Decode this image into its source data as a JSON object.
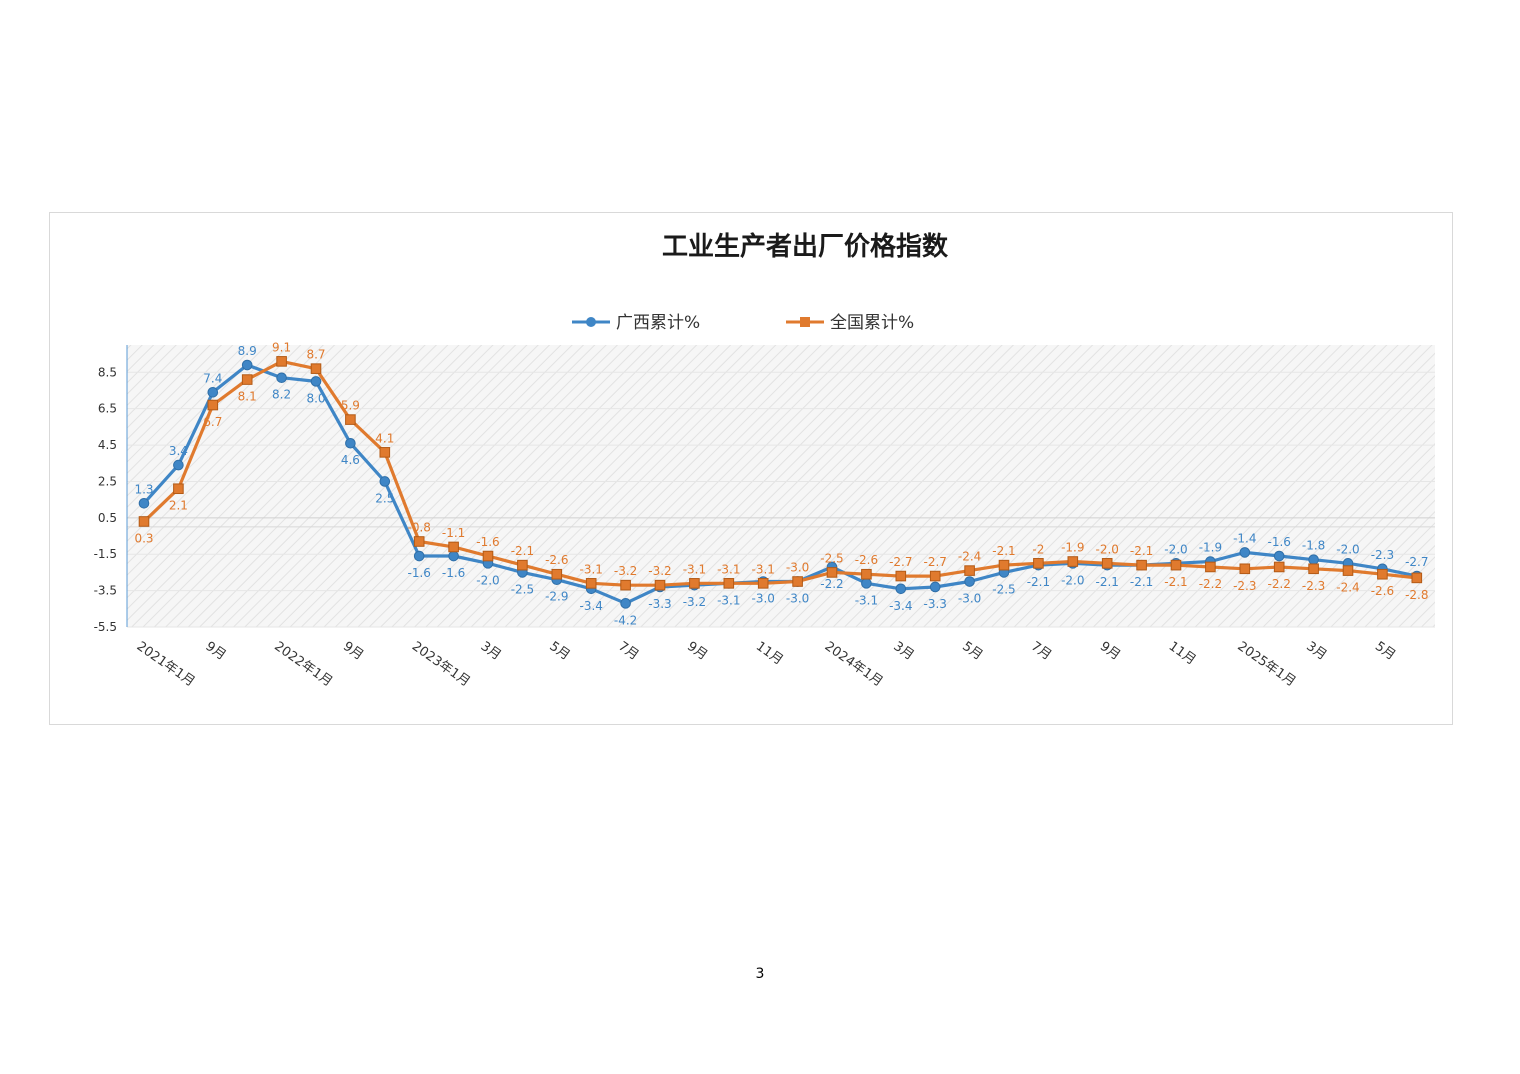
{
  "page_number": "3",
  "chart_data": {
    "type": "line",
    "title": "工业生产者出厂价格指数",
    "legend_position": "top-center",
    "grid": true,
    "ylim": [
      -5.5,
      10.0
    ],
    "y_ticks": [
      "8.5",
      "6.5",
      "4.5",
      "2.5",
      "0.5",
      "-1.5",
      "-3.5",
      "-5.5"
    ],
    "x_tick_labels": [
      {
        "index": 0,
        "label": "2021年1月"
      },
      {
        "index": 2,
        "label": "9月"
      },
      {
        "index": 4,
        "label": "2022年1月"
      },
      {
        "index": 6,
        "label": "9月"
      },
      {
        "index": 8,
        "label": "2023年1月"
      },
      {
        "index": 10,
        "label": "3月"
      },
      {
        "index": 12,
        "label": "5月"
      },
      {
        "index": 14,
        "label": "7月"
      },
      {
        "index": 16,
        "label": "9月"
      },
      {
        "index": 18,
        "label": "11月"
      },
      {
        "index": 20,
        "label": "2024年1月"
      },
      {
        "index": 22,
        "label": "3月"
      },
      {
        "index": 24,
        "label": "5月"
      },
      {
        "index": 26,
        "label": "7月"
      },
      {
        "index": 28,
        "label": "9月"
      },
      {
        "index": 30,
        "label": "11月"
      },
      {
        "index": 32,
        "label": "2025年1月"
      },
      {
        "index": 34,
        "label": "3月"
      },
      {
        "index": 36,
        "label": "5月"
      }
    ],
    "series": [
      {
        "name": "广西累计%",
        "color": "#3f86c6",
        "marker": "circle",
        "values": [
          1.3,
          3.4,
          7.4,
          8.9,
          8.2,
          8.0,
          4.6,
          2.5,
          -1.6,
          -1.6,
          -2.0,
          -2.5,
          -2.9,
          -3.4,
          -4.2,
          -3.3,
          -3.2,
          -3.1,
          -3.0,
          -3.0,
          -2.2,
          -3.1,
          -3.4,
          -3.3,
          -3.0,
          -2.5,
          -2.1,
          -2.0,
          -2.1,
          -2.1,
          -2.0,
          -1.9,
          -1.4,
          -1.6,
          -1.8,
          -2.0,
          -2.3,
          -2.7
        ],
        "labels": [
          "1.3",
          "3.4",
          "7.4",
          "8.9",
          "8.2",
          "8.0",
          "4.6",
          "2.5",
          "-1.6",
          "-1.6",
          "-2.0",
          "-2.5",
          "-2.9",
          "-3.4",
          "-4.2",
          "-3.3",
          "-3.2",
          "-3.1",
          "-3.0",
          "-3.0",
          "-2.2",
          "-3.1",
          "-3.4",
          "-3.3",
          "-3.0",
          "-2.5",
          "-2.1",
          "-2.0",
          "-2.1",
          "-2.1",
          "-2.0",
          "-1.9",
          "-1.4",
          "-1.6",
          "-1.8",
          "-2.0",
          "-2.3",
          "-2.7"
        ],
        "label_pos": [
          "a",
          "a",
          "a",
          "a",
          "b",
          "b",
          "b",
          "b",
          "b",
          "b",
          "b",
          "b",
          "b",
          "b",
          "b",
          "b",
          "b",
          "b",
          "b",
          "b",
          "b",
          "b",
          "b",
          "b",
          "b",
          "b",
          "b",
          "b",
          "b",
          "b",
          "a",
          "a",
          "a",
          "a",
          "a",
          "a",
          "a",
          "a"
        ]
      },
      {
        "name": "全国累计%",
        "color": "#e07a2e",
        "marker": "square",
        "values": [
          0.3,
          2.1,
          6.7,
          8.1,
          9.1,
          8.7,
          5.9,
          4.1,
          -0.8,
          -1.1,
          -1.6,
          -2.1,
          -2.6,
          -3.1,
          -3.2,
          -3.2,
          -3.1,
          -3.1,
          -3.1,
          -3.0,
          -2.5,
          -2.6,
          -2.7,
          -2.7,
          -2.4,
          -2.1,
          -2.0,
          -1.9,
          -2.0,
          -2.1,
          -2.1,
          -2.2,
          -2.3,
          -2.2,
          -2.3,
          -2.4,
          -2.6,
          -2.8
        ],
        "labels": [
          "0.3",
          "2.1",
          "6.7",
          "8.1",
          "9.1",
          "8.7",
          "5.9",
          "4.1",
          "-0.8",
          "-1.1",
          "-1.6",
          "-2.1",
          "-2.6",
          "-3.1",
          "-3.2",
          "-3.2",
          "-3.1",
          "-3.1",
          "-3.1",
          "-3.0",
          "-2.5",
          "-2.6",
          "-2.7",
          "-2.7",
          "-2.4",
          "-2.1",
          "-2",
          "-1.9",
          "-2.0",
          "-2.1",
          "-2.1",
          "-2.2",
          "-2.3",
          "-2.2",
          "-2.3",
          "-2.4",
          "-2.6",
          "-2.8"
        ],
        "label_pos": [
          "b",
          "b",
          "b",
          "b",
          "a",
          "a",
          "a",
          "a",
          "a",
          "a",
          "a",
          "a",
          "a",
          "a",
          "a",
          "a",
          "a",
          "a",
          "a",
          "a",
          "a",
          "a",
          "a",
          "a",
          "a",
          "a",
          "a",
          "a",
          "a",
          "a",
          "b",
          "b",
          "b",
          "b",
          "b",
          "b",
          "b",
          "b"
        ]
      }
    ]
  }
}
